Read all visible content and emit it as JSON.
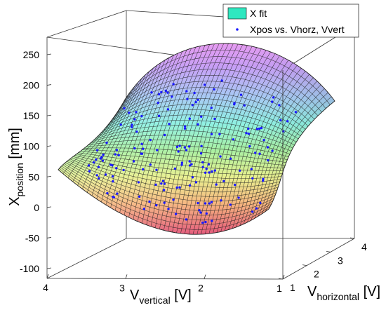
{
  "chart_data": {
    "type": "surface3d",
    "title": "",
    "axes": {
      "z": {
        "label_main": "X",
        "label_sub": "position",
        "label_unit": " [mm]",
        "range": [
          -100,
          250
        ],
        "ticks": [
          "-100",
          "-50",
          "0",
          "50",
          "100",
          "150",
          "200",
          "250"
        ]
      },
      "y": {
        "label_main": "V",
        "label_sub": "vertical",
        "label_unit": " [V]",
        "range": [
          1,
          4
        ],
        "ticks": [
          "4",
          "3",
          "2",
          "1"
        ]
      },
      "x": {
        "label_main": "V",
        "label_sub": "horizontal",
        "label_unit": " [V]",
        "range": [
          1,
          4
        ],
        "ticks": [
          "1",
          "2",
          "3",
          "4"
        ]
      }
    },
    "legend": {
      "position": "top-right",
      "entries": [
        {
          "name": "X fit",
          "kind": "surface",
          "color": "#2ee8c0"
        },
        {
          "name": "Xpos vs. Vhorz, Vvert",
          "kind": "points",
          "color": "#1a1aff"
        }
      ]
    },
    "colormap": "hsv",
    "grid": true
  }
}
